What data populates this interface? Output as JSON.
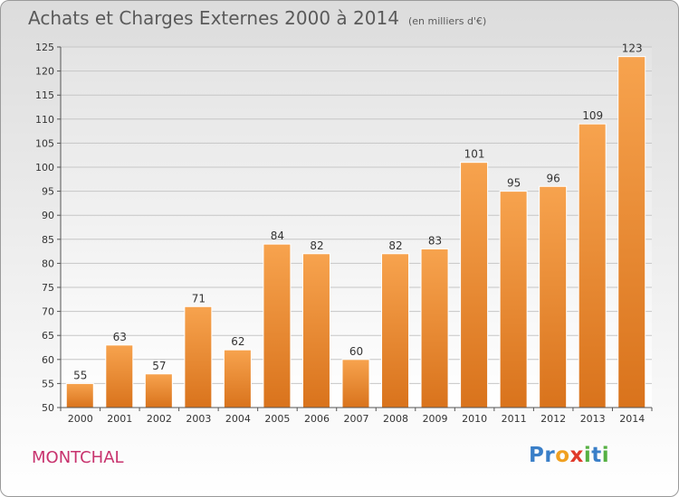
{
  "header": {
    "title": "Achats et Charges Externes 2000 à 2014",
    "unit_note": "(en milliers d'€)"
  },
  "commune": "MONTCHAL",
  "logo": {
    "letters": [
      {
        "char": "P",
        "color": "#3a7fc8"
      },
      {
        "char": "r",
        "color": "#3a7fc8"
      },
      {
        "char": "o",
        "color": "#f0a020"
      },
      {
        "char": "x",
        "color": "#e03a2a"
      },
      {
        "char": "i",
        "color": "#56b043"
      },
      {
        "char": "t",
        "color": "#3a7fc8"
      },
      {
        "char": "i",
        "color": "#56b043"
      }
    ]
  },
  "chart_data": {
    "type": "bar",
    "title": "Achats et Charges Externes 2000 à 2014",
    "xlabel": "",
    "ylabel": "",
    "categories": [
      "2000",
      "2001",
      "2002",
      "2003",
      "2004",
      "2005",
      "2006",
      "2007",
      "2008",
      "2009",
      "2010",
      "2011",
      "2012",
      "2013",
      "2014"
    ],
    "values": [
      55,
      63,
      57,
      71,
      62,
      84,
      82,
      60,
      82,
      83,
      101,
      95,
      96,
      109,
      123
    ],
    "ylim": [
      50,
      125
    ],
    "yticks": [
      50,
      55,
      60,
      65,
      70,
      75,
      80,
      85,
      90,
      95,
      100,
      105,
      110,
      115,
      120,
      125
    ],
    "grid": true,
    "legend": "none",
    "bar_color_top": "#f7a34e",
    "bar_color_bottom": "#d9731c",
    "data_labels": true
  }
}
